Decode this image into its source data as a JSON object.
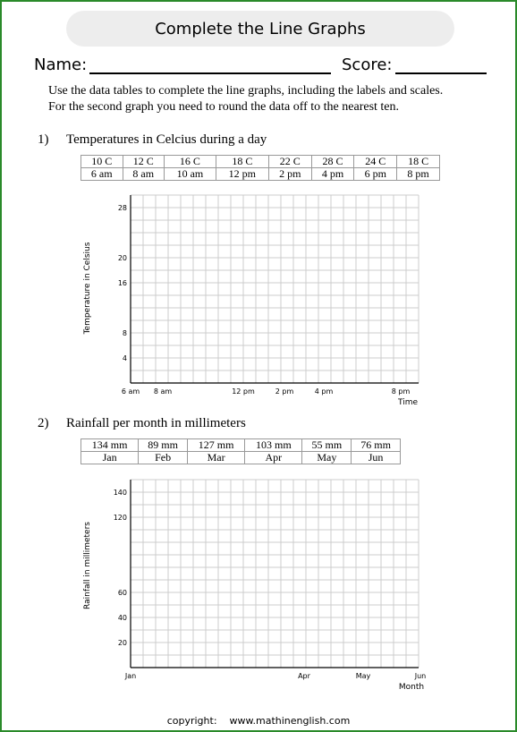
{
  "title": "Complete the Line Graphs",
  "name_label": "Name:",
  "score_label": "Score:",
  "instructions": [
    "Use the data tables to complete the line graphs, including the labels and scales.",
    "For the second graph you need to round the data off to the nearest ten."
  ],
  "q1": {
    "number": "1)",
    "title": "Temperatures in Celcius during a day",
    "table_values": [
      "10 C",
      "12 C",
      "16 C",
      "18 C",
      "22 C",
      "28 C",
      "24 C",
      "18 C"
    ],
    "table_times": [
      "6 am",
      "8 am",
      "10 am",
      "12 pm",
      "2 pm",
      "4 pm",
      "6 pm",
      "8 pm"
    ]
  },
  "q2": {
    "number": "2)",
    "title": "Rainfall per month in millimeters",
    "table_values": [
      "134 mm",
      "89 mm",
      "127 mm",
      "103 mm",
      "55 mm",
      "76 mm"
    ],
    "table_months": [
      "Jan",
      "Feb",
      "Mar",
      "Apr",
      "May",
      "Jun"
    ]
  },
  "chart_data": [
    {
      "type": "line",
      "title": "",
      "xlabel": "Time",
      "ylabel": "Temperature in Celsius",
      "grid": true,
      "y_tick_labels": [
        "28",
        "20",
        "16",
        "8",
        "4"
      ],
      "x_tick_labels": [
        "6 am",
        "8 am",
        "12 pm",
        "2 pm",
        "4 pm",
        "8 pm"
      ],
      "series": []
    },
    {
      "type": "line",
      "title": "",
      "xlabel": "Month",
      "ylabel": "Rainfall in millimeters",
      "grid": true,
      "y_tick_labels": [
        "140",
        "120",
        "60",
        "40",
        "20"
      ],
      "x_tick_labels": [
        "Jan",
        "Apr",
        "May",
        "Jun"
      ],
      "series": []
    }
  ],
  "copyright": "copyright:    www.mathinenglish.com",
  "colors": {
    "border": "#2a8a2a",
    "grid": "#cccccc",
    "title_bg": "#ededed"
  }
}
